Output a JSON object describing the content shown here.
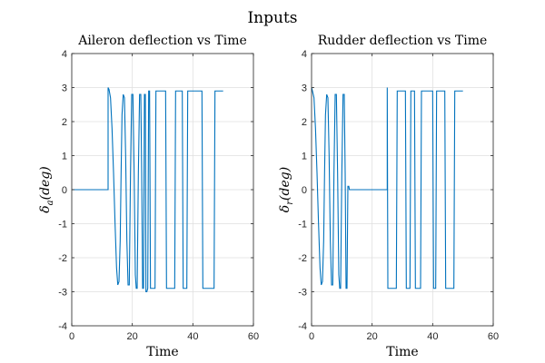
{
  "figure": {
    "title": "Inputs"
  },
  "chart_data": [
    {
      "type": "line",
      "title": "Aileron deflection vs Time",
      "xlabel": "Time",
      "ylabel_base": "δ",
      "ylabel_sub": "a",
      "ylabel_unit": "(deg)",
      "xlim": [
        0,
        60
      ],
      "ylim": [
        -4,
        4
      ],
      "xticks": [
        "0",
        "20",
        "40",
        "60"
      ],
      "yticks": [
        "-4",
        "-3",
        "-2",
        "-1",
        "0",
        "1",
        "2",
        "3",
        "4"
      ],
      "grid": true,
      "color": "#0072BD",
      "x": [
        0,
        12,
        12,
        12.3,
        12.8,
        13.3,
        13.8,
        14.3,
        14.8,
        15.2,
        15.6,
        16.0,
        16.3,
        16.6,
        17.0,
        17.4,
        17.8,
        18.2,
        18.6,
        19.0,
        19.4,
        19.8,
        20.2,
        20.6,
        21.0,
        21.3,
        21.6,
        22.0,
        22.4,
        22.8,
        23.1,
        23.4,
        23.7,
        24.0,
        24.3,
        24.5,
        24.8,
        25.1,
        25.4,
        25.7,
        26.0,
        26.2,
        26.5,
        27.5,
        27.8,
        28.1,
        28.4,
        31.0,
        31.3,
        31.6,
        34.0,
        34.3,
        36.5,
        36.8,
        37.1,
        38.0,
        38.3,
        39.0,
        39.3,
        43.0,
        43.3,
        44.0,
        44.3,
        47.0,
        47.3,
        47.5,
        47.8,
        50.0
      ],
      "y": [
        0,
        0,
        3.0,
        2.95,
        2.7,
        1.8,
        0.5,
        -1.0,
        -2.3,
        -2.8,
        -2.7,
        -1.5,
        0.5,
        2.2,
        2.8,
        2.7,
        1.0,
        -1.5,
        -2.8,
        -2.8,
        0.5,
        2.8,
        2.8,
        0.5,
        -2.5,
        -2.9,
        -2.9,
        0.5,
        2.8,
        2.8,
        0.5,
        -2.9,
        -2.9,
        2.8,
        2.8,
        -3.0,
        -3.0,
        -2.9,
        2.9,
        2.9,
        -2.9,
        -2.9,
        -2.9,
        -2.9,
        2.9,
        2.9,
        2.9,
        2.9,
        -2.9,
        -2.9,
        -2.9,
        2.9,
        2.9,
        -2.9,
        -2.9,
        -2.9,
        2.9,
        2.9,
        2.9,
        2.9,
        -2.9,
        -2.9,
        -2.9,
        -2.9,
        2.9,
        2.9,
        2.9,
        2.9
      ]
    },
    {
      "type": "line",
      "title": "Rudder deflection vs Time",
      "xlabel": "Time",
      "ylabel_base": "δ",
      "ylabel_sub": "r",
      "ylabel_unit": "(deg)",
      "xlim": [
        0,
        60
      ],
      "ylim": [
        -4,
        4
      ],
      "xticks": [
        "0",
        "20",
        "40",
        "60"
      ],
      "yticks": [
        "-4",
        "-3",
        "-2",
        "-1",
        "0",
        "1",
        "2",
        "3",
        "4"
      ],
      "grid": true,
      "color": "#0072BD",
      "x": [
        0,
        0.3,
        0.8,
        1.3,
        1.8,
        2.3,
        2.8,
        3.2,
        3.6,
        4.0,
        4.3,
        4.6,
        5.0,
        5.4,
        5.8,
        6.2,
        6.6,
        7.0,
        7.4,
        7.8,
        8.2,
        8.6,
        9.0,
        9.3,
        9.6,
        10.0,
        10.4,
        10.8,
        11.1,
        11.4,
        11.7,
        12.0,
        12.3,
        12.5,
        12.8,
        25.0,
        25.0,
        25.2,
        25.4,
        25.4,
        28.0,
        28.3,
        31.0,
        31.3,
        32.5,
        32.8,
        34.0,
        34.3,
        36.0,
        36.3,
        40.0,
        40.3,
        41.0,
        41.3,
        44.0,
        44.3,
        47.0,
        47.3,
        47.5,
        47.8,
        50.0
      ],
      "y": [
        3.0,
        2.9,
        2.7,
        1.8,
        0.5,
        -1.0,
        -2.3,
        -2.8,
        -2.7,
        -1.5,
        0.5,
        2.2,
        2.8,
        2.7,
        1.0,
        -1.5,
        -2.8,
        -2.8,
        0.5,
        2.8,
        2.8,
        0.5,
        -2.5,
        -2.9,
        -2.9,
        0.5,
        2.8,
        2.8,
        0.5,
        -2.9,
        -2.9,
        0.1,
        0.1,
        0,
        0,
        0,
        3.0,
        -2.9,
        -2.9,
        -2.9,
        -2.9,
        2.9,
        2.9,
        -2.9,
        -2.9,
        2.9,
        2.9,
        -2.9,
        -2.9,
        2.9,
        2.9,
        -2.9,
        -2.9,
        2.9,
        2.9,
        -2.9,
        -2.9,
        2.9,
        2.9,
        2.9,
        2.9
      ]
    }
  ]
}
